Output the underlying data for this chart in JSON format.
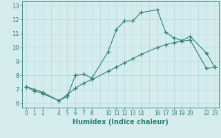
{
  "line1_x": [
    0,
    1,
    2,
    4,
    5,
    6,
    7,
    8,
    10,
    11,
    12,
    13,
    14,
    16,
    17,
    18,
    19,
    20,
    22,
    23
  ],
  "line1_y": [
    7.2,
    6.9,
    6.7,
    6.2,
    6.5,
    8.0,
    8.1,
    7.8,
    9.7,
    11.3,
    11.9,
    11.9,
    12.5,
    12.7,
    11.1,
    10.7,
    10.5,
    10.8,
    9.6,
    8.6
  ],
  "line2_x": [
    0,
    1,
    2,
    4,
    5,
    6,
    7,
    8,
    10,
    11,
    12,
    13,
    14,
    16,
    17,
    18,
    19,
    20,
    22,
    23
  ],
  "line2_y": [
    7.2,
    7.0,
    6.8,
    6.2,
    6.6,
    7.1,
    7.45,
    7.7,
    8.3,
    8.6,
    8.9,
    9.2,
    9.5,
    10.0,
    10.2,
    10.35,
    10.45,
    10.55,
    8.5,
    8.6
  ],
  "color": "#2e7d6e",
  "bg_color": "#d4ecec",
  "grid_color": "#b8d8d8",
  "xlabel": "Humidex (Indice chaleur)",
  "ylim": [
    5.7,
    13.3
  ],
  "xlim": [
    -0.5,
    23.5
  ],
  "yticks": [
    6,
    7,
    8,
    9,
    10,
    11,
    12,
    13
  ],
  "xticks": [
    0,
    1,
    2,
    4,
    5,
    6,
    7,
    8,
    10,
    11,
    12,
    13,
    14,
    16,
    17,
    18,
    19,
    20,
    22,
    23
  ],
  "xtick_labels": [
    "0",
    "1",
    "2",
    "4",
    "5",
    "6",
    "7",
    "8",
    "10",
    "11",
    "12",
    "13",
    "14",
    "16",
    "17",
    "18",
    "19",
    "20",
    "22",
    "23"
  ],
  "marker": "+",
  "markersize": 4,
  "linewidth": 0.8,
  "tick_fontsize": 5.5,
  "label_fontsize": 7
}
